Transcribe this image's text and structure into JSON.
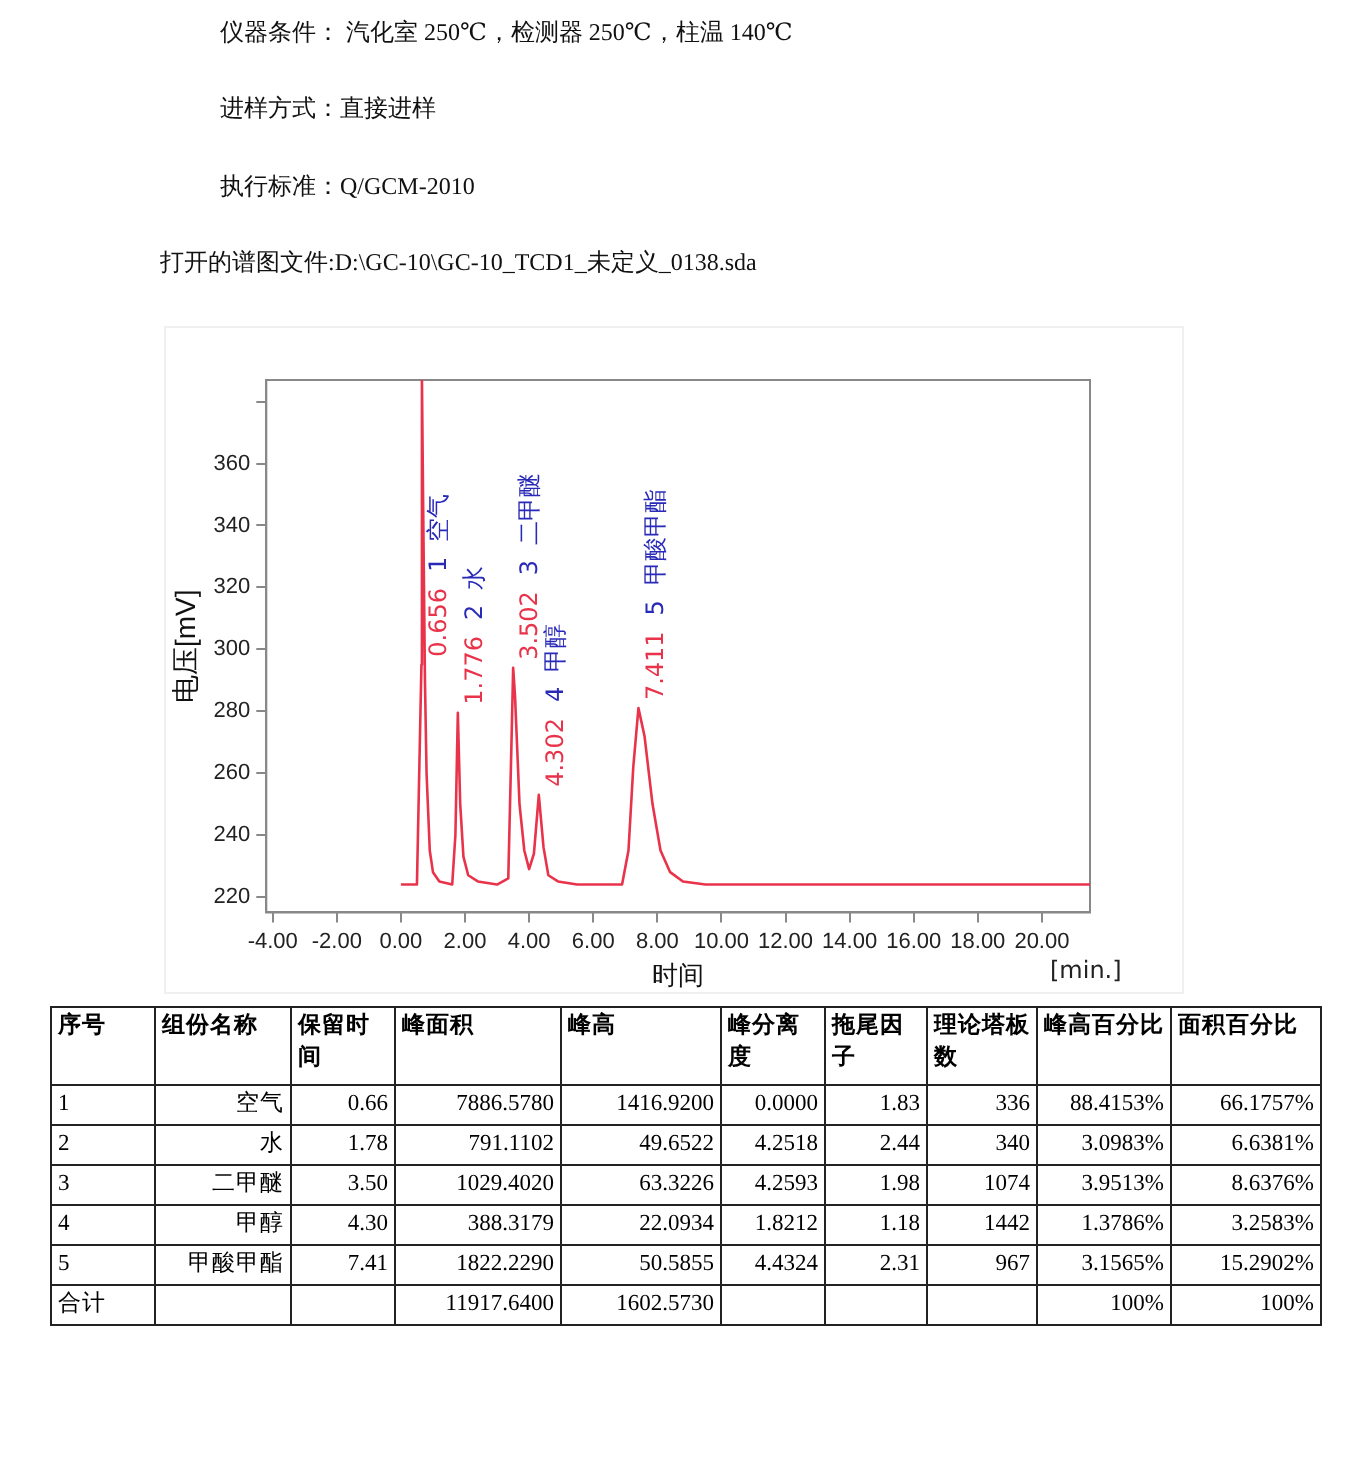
{
  "chart_data": {
    "type": "line",
    "xlabel": "时间",
    "ylabel": "电压[mV]",
    "marker": "none",
    "xlim": [
      -4.2,
      21.5
    ],
    "ylim": [
      215,
      387
    ],
    "xticks": [
      {
        "value": -4,
        "label": "-4.00"
      },
      {
        "value": -2,
        "label": "-2.00"
      },
      {
        "value": 0,
        "label": "0.00"
      },
      {
        "value": 2,
        "label": "2.00"
      },
      {
        "value": 4,
        "label": "4.00"
      },
      {
        "value": 6,
        "label": "6.00"
      },
      {
        "value": 8,
        "label": "8.00"
      },
      {
        "value": 10,
        "label": "10.00"
      },
      {
        "value": 12,
        "label": "12.00"
      },
      {
        "value": 14,
        "label": "14.00"
      },
      {
        "value": 16,
        "label": "16.00"
      },
      {
        "value": 18,
        "label": "18.00"
      },
      {
        "value": 20,
        "label": "20.00"
      }
    ],
    "yticks": [
      220,
      240,
      260,
      280,
      300,
      320,
      340,
      360,
      {
        "value": 380,
        "label": null
      }
    ],
    "series": [
      {
        "color": "#e8334a",
        "x": [
          0,
          0.5,
          0.64,
          0.656,
          0.7,
          0.75,
          0.8,
          0.9,
          1.0,
          1.2,
          1.6,
          1.7,
          1.776,
          1.85,
          1.95,
          2.1,
          2.4,
          3.0,
          3.35,
          3.45,
          3.502,
          3.56,
          3.7,
          3.85,
          4.0,
          4.15,
          4.302,
          4.45,
          4.6,
          4.9,
          5.5,
          6.9,
          7.1,
          7.25,
          7.411,
          7.6,
          7.85,
          8.1,
          8.4,
          8.8,
          9.5,
          21.5
        ],
        "values": [
          224,
          224,
          295,
          387,
          340,
          290,
          260,
          235,
          228,
          225,
          224,
          240,
          279.5,
          250,
          233,
          227,
          225,
          224,
          226,
          270,
          294,
          285,
          250,
          235,
          229,
          234,
          253,
          236,
          227,
          225,
          224,
          224,
          235,
          262,
          281,
          272,
          250,
          235,
          228,
          225,
          224,
          224
        ]
      }
    ],
    "annotations": [
      "仪器条件：  汽化室 250℃，检测器 250℃，柱温 140℃",
      "进样方式：直接进样",
      "执行标准：Q/GCM-2010",
      "打开的谱图文件:D:\\GC-10\\GC-10_TCD1_未定义_0138.sda",
      "[min.]",
      {
        "text": "0.656",
        "x": 0.64,
        "y": 295
      },
      {
        "text": "1.776",
        "x": 1.776,
        "y": 279.5
      },
      {
        "text": "3.502",
        "x": 3.502,
        "y": 294
      },
      {
        "text": "4.302",
        "x": 4.302,
        "y": 253
      },
      {
        "text": "7.411",
        "x": 7.411,
        "y": 281
      },
      "1  空气",
      "2  水",
      "3  二甲醚",
      "4  甲醇",
      "5  甲酸甲酯",
      "序号",
      "组份名称",
      "保留时间",
      "峰面积",
      "峰高",
      "峰分离度",
      "拖尾因子",
      "理论塔板数",
      "峰高百分比",
      "面积百分比",
      "1",
      "空气",
      "0.66",
      "7886.5780",
      "1416.9200",
      "0.0000",
      "1.83",
      "336",
      "88.4153%",
      "66.1757%",
      "2",
      "水",
      "1.78",
      "791.1102",
      "49.6522",
      "4.2518",
      "2.44",
      "340",
      "3.0983%",
      "6.6381%",
      "3",
      "二甲醚",
      "3.50",
      "1029.4020",
      "63.3226",
      "4.2593",
      "1.98",
      "1074",
      "3.9513%",
      "8.6376%",
      "4",
      "甲醇",
      "4.30",
      "388.3179",
      "22.0934",
      "1.8212",
      "1.18",
      "1442",
      "1.3786%",
      "3.2583%",
      "5",
      "甲酸甲酯",
      "7.41",
      "1822.2290",
      "50.5855",
      "4.4324",
      "2.31",
      "967",
      "3.1565%",
      "15.2902%",
      "合计",
      null,
      null,
      "11917.6400",
      "1602.5730",
      null,
      null,
      null,
      "100%",
      "100%"
    ]
  }
}
